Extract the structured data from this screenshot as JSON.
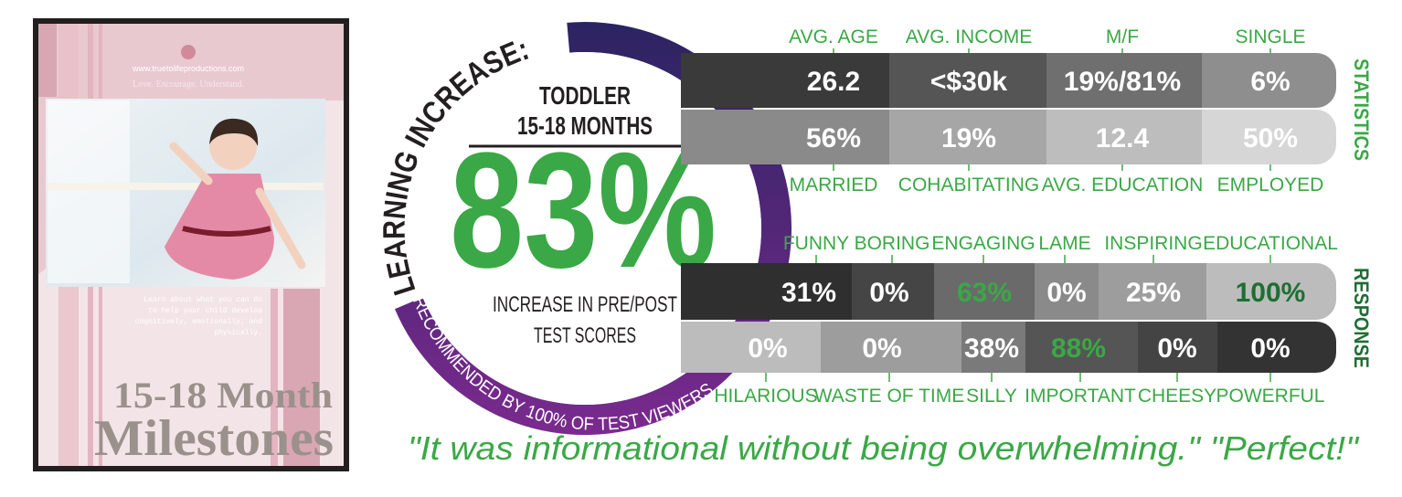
{
  "poster": {
    "url": "www.truetolifeproductions.com",
    "tagline": "Love. Encourage. Understand.",
    "blurb": [
      "Learn about what you can do",
      "to help your child develop",
      "cognitively, emotionally, and",
      "physically."
    ],
    "title": [
      "15-18 Month",
      "Milestones"
    ]
  },
  "circle": {
    "arc_title": "LEARNING INCREASE:",
    "group": "TODDLER",
    "age": "15-18 MONTHS",
    "headline": "83%",
    "caption": [
      "INCREASE IN PRE/POST",
      "TEST SCORES"
    ],
    "arc_footer": "RECOMMENDED BY 100% OF TEST VIEWERS"
  },
  "statistics": {
    "label": "STATISTICS",
    "top": [
      {
        "label": "AVG. AGE",
        "value": "26.2"
      },
      {
        "label": "AVG. INCOME",
        "value": "<$30k"
      },
      {
        "label": "M/F",
        "value": "19%/81%"
      },
      {
        "label": "SINGLE",
        "value": "6%"
      }
    ],
    "bottom": [
      {
        "label": "MARRIED",
        "value": "56%"
      },
      {
        "label": "COHABITATING",
        "value": "19%"
      },
      {
        "label": "AVG. EDUCATION",
        "value": "12.4"
      },
      {
        "label": "EMPLOYED",
        "value": "50%"
      }
    ]
  },
  "response": {
    "label": "RESPONSE",
    "top": [
      {
        "label": "FUNNY",
        "value": "31%"
      },
      {
        "label": "BORING",
        "value": "0%"
      },
      {
        "label": "ENGAGING",
        "value": "63%"
      },
      {
        "label": "LAME",
        "value": "0%"
      },
      {
        "label": "INSPIRING",
        "value": "25%"
      },
      {
        "label": "EDUCATIONAL",
        "value": "100%"
      }
    ],
    "bottom": [
      {
        "label": "HILARIOUS",
        "value": "0%"
      },
      {
        "label": "WASTE OF TIME",
        "value": "0%"
      },
      {
        "label": "SILLY",
        "value": "38%"
      },
      {
        "label": "IMPORTANT",
        "value": "88%"
      },
      {
        "label": "CHEESY",
        "value": "0%"
      },
      {
        "label": "POWERFUL",
        "value": "0%"
      }
    ]
  },
  "quote": "\"It was informational without being overwhelming.\"  \"Perfect!\""
}
